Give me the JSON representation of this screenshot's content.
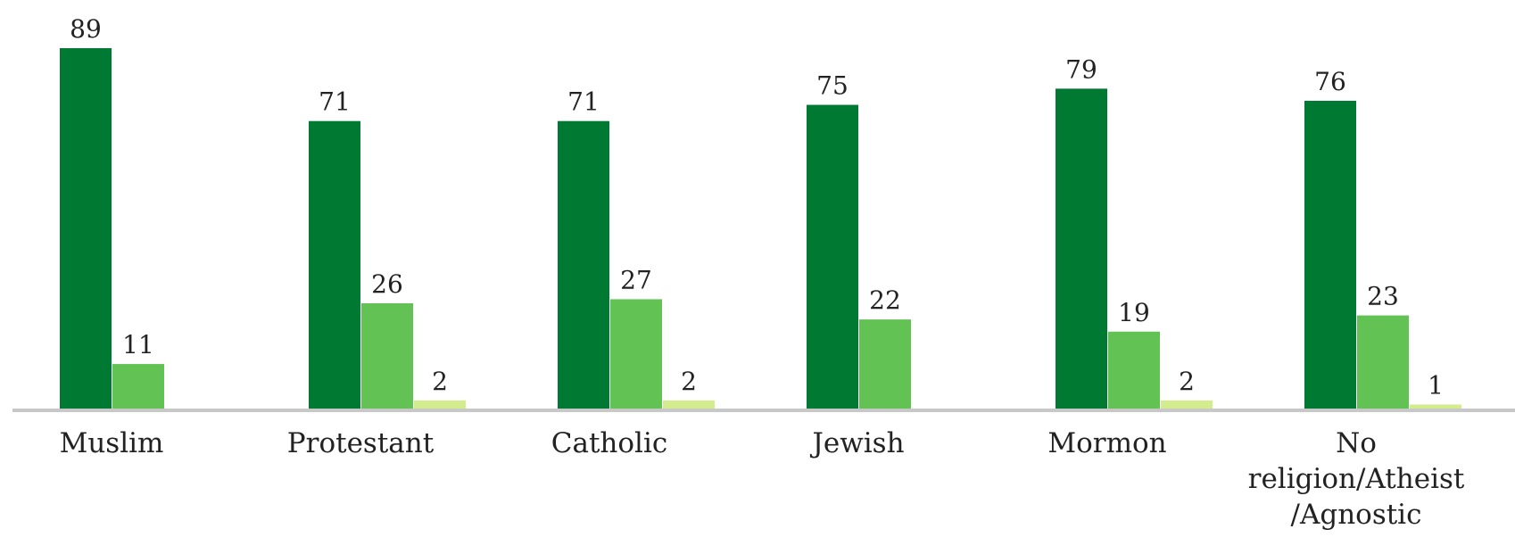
{
  "chart_data": {
    "type": "bar",
    "categories": [
      [
        "Muslim"
      ],
      [
        "Protestant"
      ],
      [
        "Catholic"
      ],
      [
        "Jewish"
      ],
      [
        "Mormon"
      ],
      [
        "No",
        "religion/Atheist",
        "/Agnostic"
      ]
    ],
    "series": [
      {
        "color": "#007a33",
        "values": [
          89,
          71,
          71,
          75,
          79,
          76
        ],
        "labels": [
          "89",
          "71",
          "71",
          "75",
          "79",
          "76"
        ]
      },
      {
        "color": "#62c254",
        "values": [
          11,
          26,
          27,
          22,
          19,
          23
        ],
        "labels": [
          "11",
          "26",
          "27",
          "22",
          "19",
          "23"
        ]
      },
      {
        "color": "#d3ec8e",
        "values": [
          0,
          2,
          2,
          0,
          2,
          1
        ],
        "labels": [
          "",
          "2",
          "2",
          "",
          "2",
          "1"
        ]
      }
    ],
    "ylim": [
      0,
      100
    ],
    "grid": false,
    "legend": "none",
    "axis_color": "#c8c8c8"
  }
}
